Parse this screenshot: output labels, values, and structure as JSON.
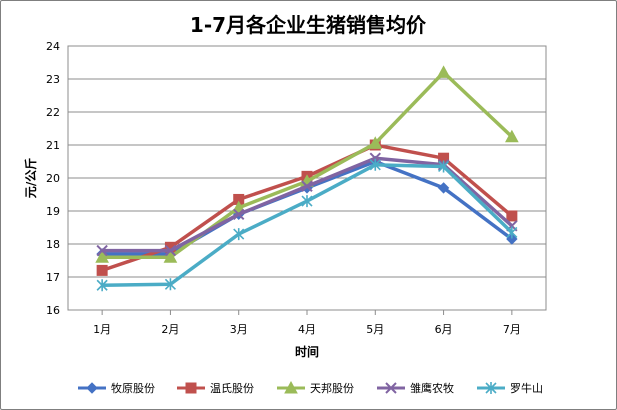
{
  "chart_data": {
    "type": "line",
    "title": "1-7月各企业生猪销售均价",
    "xlabel": "时间",
    "ylabel": "元/公斤",
    "ylim": [
      16,
      24
    ],
    "yticks": [
      "16",
      "17",
      "18",
      "19",
      "20",
      "21",
      "22",
      "23",
      "24"
    ],
    "categories": [
      "1月",
      "2月",
      "3月",
      "4月",
      "5月",
      "6月",
      "7月"
    ],
    "grid": true,
    "legend_position": "bottom",
    "series": [
      {
        "name": "牧原股份",
        "color": "#4472c4",
        "marker": "diamond",
        "values": [
          17.7,
          17.7,
          18.9,
          19.7,
          20.5,
          19.7,
          18.15
        ]
      },
      {
        "name": "温氏股份",
        "color": "#c0504d",
        "marker": "square",
        "values": [
          17.2,
          17.9,
          19.35,
          20.05,
          21.0,
          20.6,
          18.85
        ]
      },
      {
        "name": "天邦股份",
        "color": "#9bbb59",
        "marker": "triangle",
        "values": [
          17.6,
          17.6,
          19.1,
          19.9,
          21.05,
          23.2,
          21.25
        ]
      },
      {
        "name": "雏鹰农牧",
        "color": "#8064a2",
        "marker": "x",
        "values": [
          17.8,
          17.8,
          18.9,
          19.75,
          20.6,
          20.4,
          18.55
        ]
      },
      {
        "name": "罗牛山",
        "color": "#4bacc6",
        "marker": "star",
        "values": [
          16.75,
          16.78,
          18.3,
          19.3,
          20.4,
          20.35,
          18.35
        ]
      }
    ]
  }
}
